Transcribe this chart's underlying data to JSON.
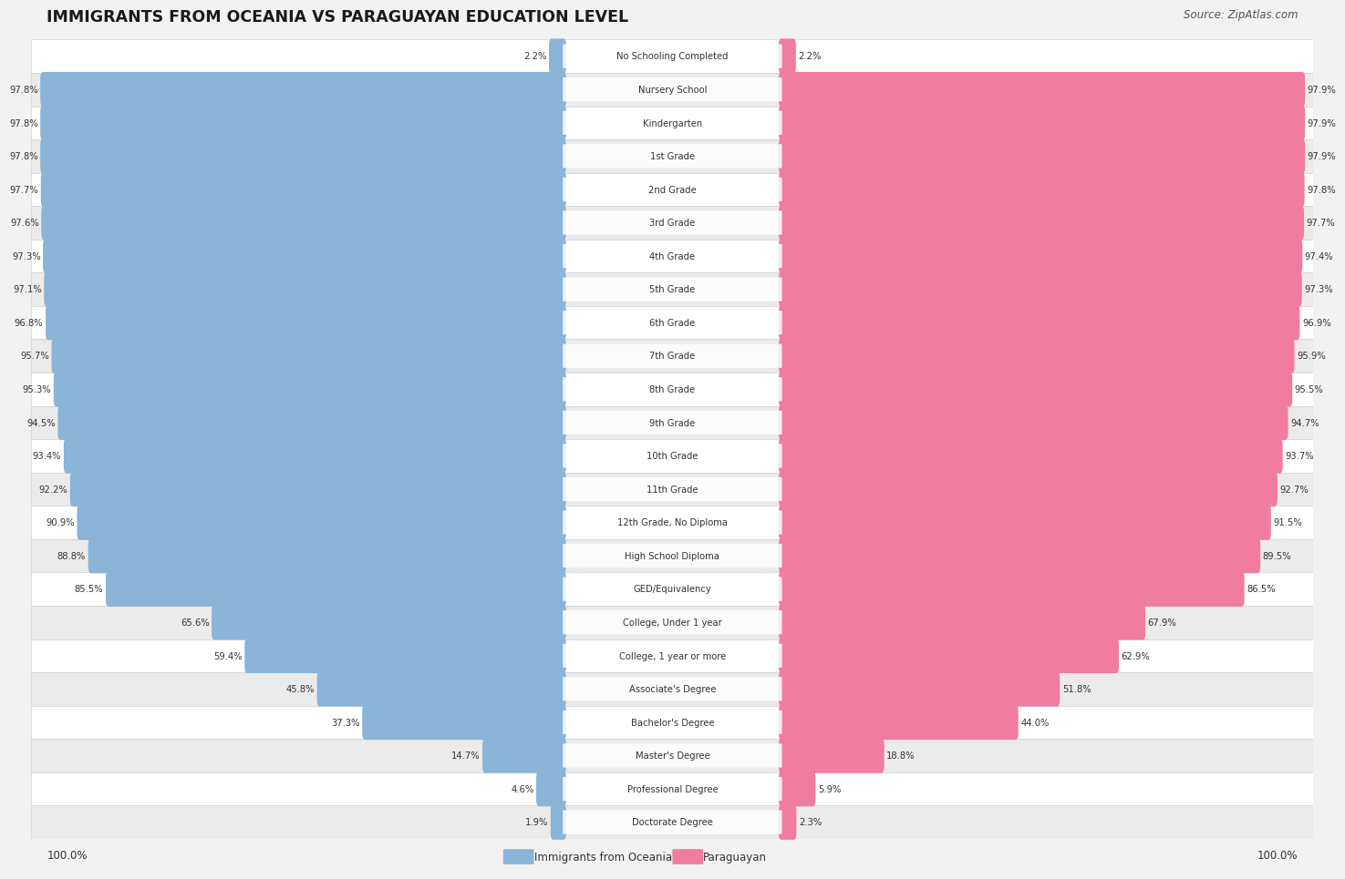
{
  "title": "IMMIGRANTS FROM OCEANIA VS PARAGUAYAN EDUCATION LEVEL",
  "source": "Source: ZipAtlas.com",
  "categories": [
    "No Schooling Completed",
    "Nursery School",
    "Kindergarten",
    "1st Grade",
    "2nd Grade",
    "3rd Grade",
    "4th Grade",
    "5th Grade",
    "6th Grade",
    "7th Grade",
    "8th Grade",
    "9th Grade",
    "10th Grade",
    "11th Grade",
    "12th Grade, No Diploma",
    "High School Diploma",
    "GED/Equivalency",
    "College, Under 1 year",
    "College, 1 year or more",
    "Associate's Degree",
    "Bachelor's Degree",
    "Master's Degree",
    "Professional Degree",
    "Doctorate Degree"
  ],
  "oceania_values": [
    2.2,
    97.8,
    97.8,
    97.8,
    97.7,
    97.6,
    97.3,
    97.1,
    96.8,
    95.7,
    95.3,
    94.5,
    93.4,
    92.2,
    90.9,
    88.8,
    85.5,
    65.6,
    59.4,
    45.8,
    37.3,
    14.7,
    4.6,
    1.9
  ],
  "paraguayan_values": [
    2.2,
    97.9,
    97.9,
    97.9,
    97.8,
    97.7,
    97.4,
    97.3,
    96.9,
    95.9,
    95.5,
    94.7,
    93.7,
    92.7,
    91.5,
    89.5,
    86.5,
    67.9,
    62.9,
    51.8,
    44.0,
    18.8,
    5.9,
    2.3
  ],
  "oceania_color": "#8ab4d8",
  "paraguayan_color": "#f07ca0",
  "bg_color": "#f2f2f2",
  "row_even_color": "#ffffff",
  "row_odd_color": "#ebebeb",
  "axis_label_left": "100.0%",
  "axis_label_right": "100.0%",
  "legend_oceania": "Immigrants from Oceania",
  "legend_paraguayan": "Paraguayan",
  "label_text_color": "#333333",
  "value_text_color": "#333333"
}
